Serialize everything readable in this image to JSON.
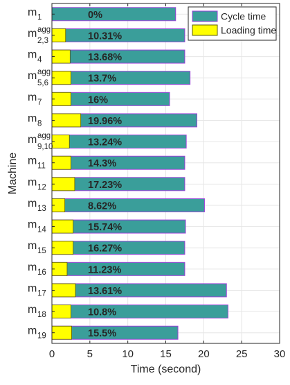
{
  "chart_data": {
    "type": "bar",
    "orientation": "horizontal",
    "categories": [
      {
        "base": "m",
        "sup": "",
        "sub": "1"
      },
      {
        "base": "m",
        "sup": "agg",
        "sub": "2,3"
      },
      {
        "base": "m",
        "sup": "",
        "sub": "4"
      },
      {
        "base": "m",
        "sup": "agg",
        "sub": "5,6"
      },
      {
        "base": "m",
        "sup": "",
        "sub": "7"
      },
      {
        "base": "m",
        "sup": "",
        "sub": "8"
      },
      {
        "base": "m",
        "sup": "agg",
        "sub": "9,10"
      },
      {
        "base": "m",
        "sup": "",
        "sub": "11"
      },
      {
        "base": "m",
        "sup": "",
        "sub": "12"
      },
      {
        "base": "m",
        "sup": "",
        "sub": "13"
      },
      {
        "base": "m",
        "sup": "",
        "sub": "14"
      },
      {
        "base": "m",
        "sup": "",
        "sub": "15"
      },
      {
        "base": "m",
        "sup": "",
        "sub": "16"
      },
      {
        "base": "m",
        "sup": "",
        "sub": "17"
      },
      {
        "base": "m",
        "sup": "",
        "sub": "18"
      },
      {
        "base": "m",
        "sup": "",
        "sub": "19"
      }
    ],
    "series": [
      {
        "name": "Cycle time",
        "color": "#3a9e9a",
        "values": [
          16.3,
          17.5,
          17.5,
          18.2,
          15.5,
          19.1,
          17.7,
          17.5,
          17.5,
          20.1,
          17.6,
          17.5,
          17.5,
          23.0,
          23.2,
          16.6
        ]
      },
      {
        "name": "Loading time",
        "color": "#ffff00",
        "values": [
          0,
          1.8,
          2.4,
          2.5,
          2.5,
          3.8,
          2.3,
          2.5,
          3.0,
          1.7,
          2.8,
          2.8,
          2.0,
          3.1,
          2.5,
          2.6
        ]
      }
    ],
    "bar_labels": [
      "0%",
      "10.31%",
      "13.68%",
      "13.7%",
      "16%",
      "19.96%",
      "13.24%",
      "14.3%",
      "17.23%",
      "8.62%",
      "15.74%",
      "16.27%",
      "11.23%",
      "13.61%",
      "10.8%",
      "15.5%"
    ],
    "xlabel": "Time (second)",
    "ylabel": "Machine",
    "xlim": [
      0,
      30
    ],
    "xticks": [
      0,
      5,
      10,
      15,
      20,
      25,
      30
    ],
    "grid": true,
    "legend_position": "top-right",
    "edge_color": "#9b3fd9"
  }
}
